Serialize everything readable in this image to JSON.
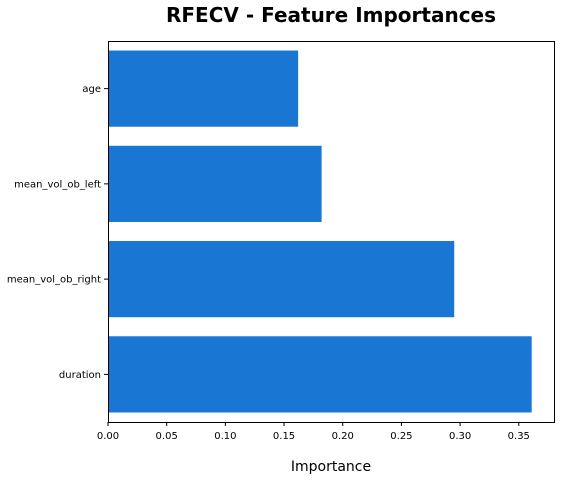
{
  "chart_data": {
    "type": "bar",
    "orientation": "horizontal",
    "title": "RFECV - Feature Importances",
    "xlabel": "Importance",
    "ylabel": "",
    "categories": [
      "duration",
      "mean_vol_ob_right",
      "mean_vol_ob_left",
      "age"
    ],
    "values": [
      0.361,
      0.295,
      0.182,
      0.162
    ],
    "xlim": [
      0.0,
      0.38
    ],
    "xticks": [
      "0.00",
      "0.05",
      "0.10",
      "0.15",
      "0.20",
      "0.25",
      "0.30",
      "0.35"
    ],
    "grid": false,
    "legend": "none",
    "bar_color": "#1976d2"
  }
}
